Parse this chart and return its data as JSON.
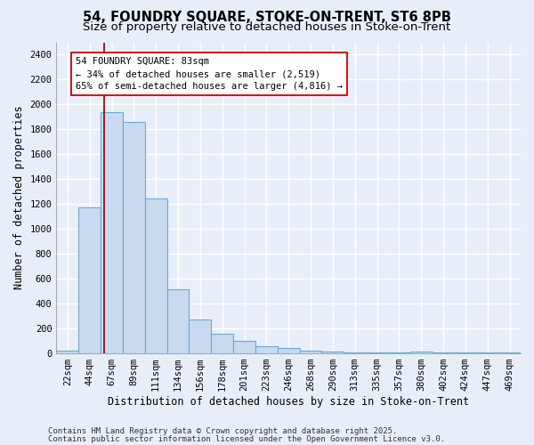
{
  "title1": "54, FOUNDRY SQUARE, STOKE-ON-TRENT, ST6 8PB",
  "title2": "Size of property relative to detached houses in Stoke-on-Trent",
  "xlabel": "Distribution of detached houses by size in Stoke-on-Trent",
  "ylabel": "Number of detached properties",
  "categories": [
    "22sqm",
    "44sqm",
    "67sqm",
    "89sqm",
    "111sqm",
    "134sqm",
    "156sqm",
    "178sqm",
    "201sqm",
    "223sqm",
    "246sqm",
    "268sqm",
    "290sqm",
    "313sqm",
    "335sqm",
    "357sqm",
    "380sqm",
    "402sqm",
    "424sqm",
    "447sqm",
    "469sqm"
  ],
  "values": [
    20,
    1170,
    1940,
    1860,
    1240,
    510,
    270,
    155,
    100,
    55,
    40,
    20,
    8,
    4,
    2,
    2,
    8,
    2,
    2,
    2,
    2
  ],
  "bar_color": "#c9d9f0",
  "bar_edge_color": "#6aaad4",
  "bg_color": "#e8eef8",
  "grid_color": "#ffffff",
  "annotation_line1": "54 FOUNDRY SQUARE: 83sqm",
  "annotation_line2": "← 34% of detached houses are smaller (2,519)",
  "annotation_line3": "65% of semi-detached houses are larger (4,816) →",
  "red_line_x": 1.65,
  "ylim": [
    0,
    2500
  ],
  "yticks": [
    0,
    200,
    400,
    600,
    800,
    1000,
    1200,
    1400,
    1600,
    1800,
    2000,
    2200,
    2400
  ],
  "footer1": "Contains HM Land Registry data © Crown copyright and database right 2025.",
  "footer2": "Contains public sector information licensed under the Open Government Licence v3.0.",
  "title1_fontsize": 10.5,
  "title2_fontsize": 9.5,
  "annotation_fontsize": 7.5,
  "axis_label_fontsize": 8.5,
  "tick_fontsize": 7.5,
  "footer_fontsize": 6.5
}
